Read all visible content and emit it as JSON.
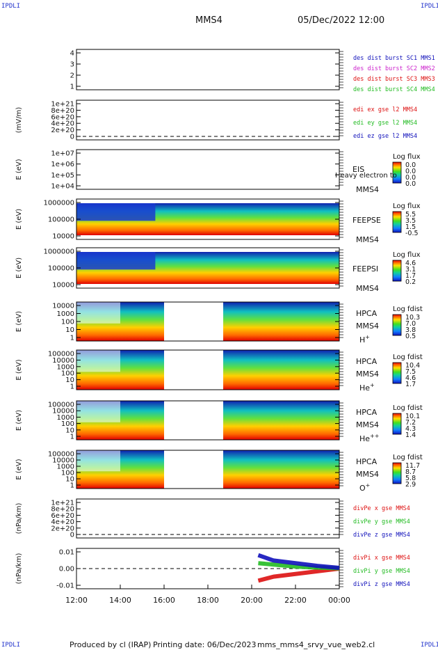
{
  "corner_label": "IPDLI",
  "header": {
    "spacecraft": "MMS4",
    "datetime": "05/Dec/2022 12:00"
  },
  "footer": {
    "producer": "Produced by cl (IRAP)",
    "printing_date": "Printing date: 06/Dec/2023",
    "script": "mms_mms4_srvy_vue_web2.cl"
  },
  "colors": {
    "blue": "#1111bb",
    "magenta": "#cc22cc",
    "red": "#dd1111",
    "green": "#22bb22"
  },
  "time_axis": {
    "ticks": [
      "12:00",
      "14:00",
      "16:00",
      "18:00",
      "20:00",
      "22:00",
      "00:00"
    ]
  },
  "chart_data": [
    {
      "type": "line",
      "id": "des",
      "yticks": [
        "4",
        "3",
        "2",
        "1"
      ],
      "ylim": [
        0.6,
        4.4
      ],
      "legend": [
        {
          "text": "des dist burst SC1 MMS1",
          "color": "blue"
        },
        {
          "text": "des dist burst SC2 MMS2",
          "color": "magenta"
        },
        {
          "text": "des dist burst SC3 MMS3",
          "color": "red"
        },
        {
          "text": "des dist burst SC4 MMS4",
          "color": "green"
        }
      ]
    },
    {
      "type": "line",
      "id": "edi",
      "ylabel": "(mV/m)",
      "yticks": [
        "1e+21",
        "8e+20",
        "6e+20",
        "4e+20",
        "2e+20",
        "0"
      ],
      "legend": [
        {
          "text": "edi ex gse l2 MMS4",
          "color": "red"
        },
        {
          "text": "edi ey gse l2 MMS4",
          "color": "green"
        },
        {
          "text": "edi ez gse l2 MMS4",
          "color": "blue"
        }
      ],
      "dashed_zero": true
    },
    {
      "type": "heatmap",
      "id": "eis",
      "ylabel": "E (eV)",
      "yticks": [
        "1e+07",
        "1e+06",
        "1e+05",
        "1e+04"
      ],
      "instrument": "EIS",
      "spacecraft": "MMS4",
      "colorbar": {
        "title": "Log flux",
        "ticks": [
          "0.0",
          "0.0",
          "0.0",
          "0.0"
        ]
      },
      "overlay_text": "Heavy electron to"
    },
    {
      "type": "heatmap",
      "id": "feepse",
      "ylabel": "E (eV)",
      "yticks": [
        "1000000",
        "100000",
        "10000"
      ],
      "instrument": "FEEPSE",
      "spacecraft": "MMS4",
      "colorbar": {
        "title": "Log flux",
        "ticks": [
          "5.5",
          "3.5",
          "1.5",
          "-0.5"
        ]
      }
    },
    {
      "type": "heatmap",
      "id": "feepsi",
      "ylabel": "E (eV)",
      "yticks": [
        "1000000",
        "100000",
        "10000"
      ],
      "instrument": "FEEPSI",
      "spacecraft": "MMS4",
      "colorbar": {
        "title": "Log flux",
        "ticks": [
          "4.6",
          "3.1",
          "1.7",
          "0.2"
        ]
      }
    },
    {
      "type": "heatmap",
      "id": "hpca_h",
      "ylabel": "E (eV)",
      "yticks": [
        "10000",
        "1000",
        "100",
        "10",
        "1"
      ],
      "instrument": "HPCA",
      "spacecraft": "MMS4",
      "species": "H",
      "species_sup": "+",
      "colorbar": {
        "title": "Log fdist",
        "ticks": [
          "10.3",
          "7.0",
          "3.8",
          "0.5"
        ]
      },
      "data_gaps_hours": [
        [
          16.0,
          18.7
        ]
      ]
    },
    {
      "type": "heatmap",
      "id": "hpca_he",
      "ylabel": "E (eV)",
      "yticks": [
        "100000",
        "10000",
        "1000",
        "100",
        "10",
        "1"
      ],
      "instrument": "HPCA",
      "spacecraft": "MMS4",
      "species": "He",
      "species_sup": "+",
      "colorbar": {
        "title": "Log fdist",
        "ticks": [
          "10.4",
          "7.5",
          "4.6",
          "1.7"
        ]
      },
      "data_gaps_hours": [
        [
          16.0,
          18.7
        ]
      ]
    },
    {
      "type": "heatmap",
      "id": "hpca_hepp",
      "ylabel": "E (eV)",
      "yticks": [
        "100000",
        "10000",
        "1000",
        "100",
        "10",
        "1"
      ],
      "instrument": "HPCA",
      "spacecraft": "MMS4",
      "species": "He",
      "species_sup": "++",
      "colorbar": {
        "title": "Log fdist",
        "ticks": [
          "10.1",
          "7.2",
          "4.3",
          "1.4"
        ]
      },
      "data_gaps_hours": [
        [
          16.0,
          18.7
        ]
      ]
    },
    {
      "type": "heatmap",
      "id": "hpca_o",
      "ylabel": "E (eV)",
      "yticks": [
        "100000",
        "10000",
        "1000",
        "100",
        "10",
        "1"
      ],
      "instrument": "HPCA",
      "spacecraft": "MMS4",
      "species": "O",
      "species_sup": "+",
      "colorbar": {
        "title": "Log fdist",
        "ticks": [
          "11.7",
          "8.7",
          "5.8",
          "2.9"
        ]
      },
      "data_gaps_hours": [
        [
          16.0,
          18.7
        ]
      ]
    },
    {
      "type": "line",
      "id": "divpe",
      "ylabel": "(nPa/km)",
      "yticks": [
        "1e+21",
        "8e+20",
        "6e+20",
        "4e+20",
        "2e+20",
        "0"
      ],
      "legend": [
        {
          "text": "divPe x gse MMS4",
          "color": "red"
        },
        {
          "text": "divPe y gse MMS4",
          "color": "green"
        },
        {
          "text": "divPe z gse MMS4",
          "color": "blue"
        }
      ],
      "dashed_zero": true
    },
    {
      "type": "line",
      "id": "divpi",
      "ylabel": "(nPa/km)",
      "yticks": [
        "0.01",
        "0.00",
        "-0.01"
      ],
      "ylim": [
        -0.015,
        0.015
      ],
      "legend": [
        {
          "text": "divPi x gse MMS4",
          "color": "red"
        },
        {
          "text": "divPi y gse MMS4",
          "color": "green"
        },
        {
          "text": "divPi z gse MMS4",
          "color": "blue"
        }
      ],
      "dashed_zero": true,
      "series": [
        {
          "name": "divPi x gse MMS4",
          "color": "red",
          "x_hours": [
            20.3,
            21.0,
            22.0,
            23.0,
            24.0
          ],
          "y": [
            -0.009,
            -0.006,
            -0.004,
            -0.002,
            0.0
          ]
        },
        {
          "name": "divPi y gse MMS4",
          "color": "green",
          "x_hours": [
            20.3,
            21.0,
            22.0,
            23.0,
            24.0
          ],
          "y": [
            0.004,
            0.003,
            0.0015,
            0.0007,
            0.0002
          ]
        },
        {
          "name": "divPi z gse MMS4",
          "color": "blue",
          "x_hours": [
            20.3,
            21.0,
            22.0,
            23.0,
            24.0
          ],
          "y": [
            0.01,
            0.006,
            0.004,
            0.002,
            0.0005
          ]
        }
      ]
    }
  ]
}
